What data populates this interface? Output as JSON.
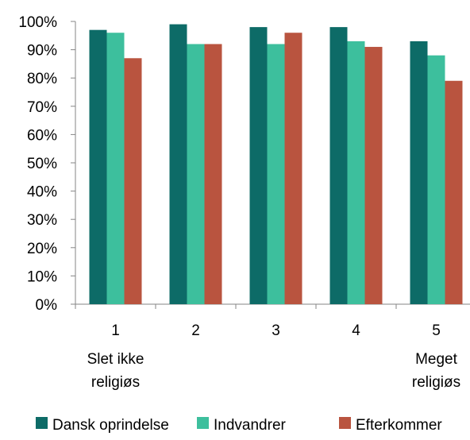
{
  "chart_data": {
    "type": "bar",
    "title": "",
    "xlabel": "",
    "ylabel": "",
    "ylim": [
      0,
      100
    ],
    "yticks": [
      "0%",
      "10%",
      "20%",
      "30%",
      "40%",
      "50%",
      "60%",
      "70%",
      "80%",
      "90%",
      "100%"
    ],
    "categories": [
      "1",
      "2",
      "3",
      "4",
      "5"
    ],
    "category_sublabels": [
      [
        "Slet ikke",
        "religiøs"
      ],
      [],
      [],
      [],
      [
        "Meget",
        "religiøs"
      ]
    ],
    "series": [
      {
        "name": "Dansk oprindelse",
        "color": "#0d6b67",
        "values": [
          97,
          99,
          98,
          98,
          93
        ]
      },
      {
        "name": "Indvandrer",
        "color": "#3dbf9d",
        "values": [
          96,
          92,
          92,
          93,
          88
        ]
      },
      {
        "name": "Efterkommer",
        "color": "#b9543f",
        "values": [
          87,
          92,
          96,
          91,
          79
        ]
      }
    ],
    "grid": false,
    "legend_position": "bottom"
  }
}
